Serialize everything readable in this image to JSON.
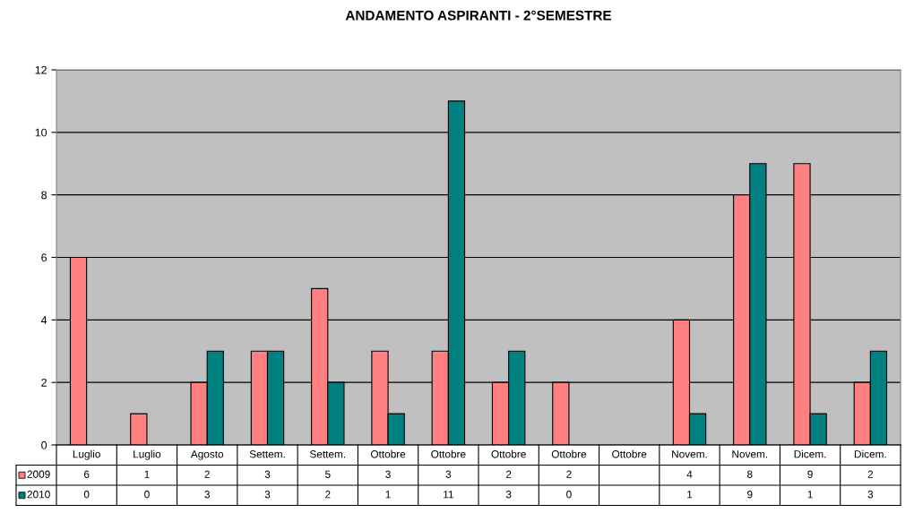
{
  "chart_data": {
    "type": "bar",
    "title": "ANDAMENTO ASPIRANTI - 2°SEMESTRE",
    "categories": [
      "Luglio",
      "Luglio",
      "Agosto",
      "Settem.",
      "Settem.",
      "Ottobre",
      "Ottobre",
      "Ottobre",
      "Ottobre",
      "Ottobre",
      "Novem.",
      "Novem.",
      "Dicem.",
      "Dicem."
    ],
    "series": [
      {
        "name": "2009",
        "color": "#ff8080",
        "values": [
          6,
          1,
          2,
          3,
          5,
          3,
          3,
          2,
          2,
          null,
          4,
          8,
          9,
          2
        ]
      },
      {
        "name": "2010",
        "color": "#008080",
        "values": [
          0,
          0,
          3,
          3,
          2,
          1,
          11,
          3,
          0,
          null,
          1,
          9,
          1,
          3
        ]
      }
    ],
    "ylim": [
      0,
      12
    ],
    "yticks": [
      0,
      2,
      4,
      6,
      8,
      10,
      12
    ],
    "grid": "y",
    "legend": "bottom",
    "data_labels": true
  }
}
